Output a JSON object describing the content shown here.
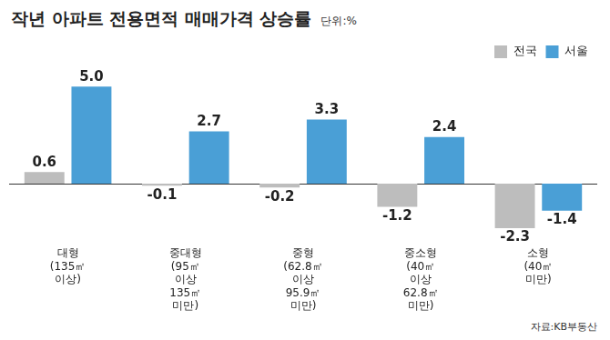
{
  "chart_data": {
    "type": "bar",
    "title": "작년 아파트 전용면적 매매가격 상승률",
    "subtitle": "단위:%",
    "source": "자료:KB부동산",
    "categories": [
      "대형 (135㎡ 이상)",
      "중대형 (95㎡ 이상 135㎡ 미만)",
      "중형 (62.8㎡ 이상 95.9㎡ 미만)",
      "중소형 (40㎡ 이상 62.8㎡ 미만)",
      "소형 (40㎡ 미만)"
    ],
    "series": [
      {
        "name": "전국",
        "color": "#bdbdbd",
        "values": [
          0.6,
          -0.1,
          -0.2,
          -1.2,
          -2.3
        ],
        "value_labels": [
          "0.6",
          "-0.1",
          "-0.2",
          "-1.2",
          "-2.3"
        ]
      },
      {
        "name": "서울",
        "color": "#4a9fd6",
        "values": [
          5.0,
          2.7,
          3.3,
          2.4,
          -1.4
        ],
        "value_labels": [
          "5.0",
          "2.7",
          "3.3",
          "2.4",
          "-1.4"
        ]
      }
    ],
    "ylim": [
      -3,
      6
    ],
    "grid": false,
    "legend": "top-right",
    "data_labels": true,
    "tick_labels": "x"
  }
}
